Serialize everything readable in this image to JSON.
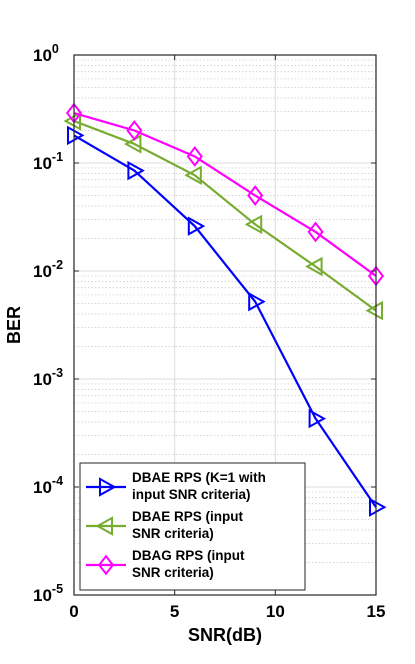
{
  "chart_data": {
    "type": "line",
    "title": "",
    "xlabel": "SNR(dB)",
    "ylabel": "BER",
    "x": [
      0,
      3,
      6,
      9,
      12,
      15
    ],
    "xlim": [
      0,
      15
    ],
    "xticks": [
      "0",
      "5",
      "10",
      "15"
    ],
    "yscale": "log",
    "ylim": [
      1e-05,
      1
    ],
    "yticks": [
      {
        "base": "10",
        "exp": "0"
      },
      {
        "base": "10",
        "exp": "-1"
      },
      {
        "base": "10",
        "exp": "-2"
      },
      {
        "base": "10",
        "exp": "-3"
      },
      {
        "base": "10",
        "exp": "-4"
      },
      {
        "base": "10",
        "exp": "-5"
      }
    ],
    "grid": true,
    "legend_position": "bottom-left",
    "series": [
      {
        "name_lines": [
          "DBAE RPS (K=1 with",
          "input SNR criteria)"
        ],
        "color": "#0000ff",
        "marker": "triangle-right",
        "values": [
          0.18,
          0.085,
          0.026,
          0.0052,
          0.00043,
          6.5e-05
        ]
      },
      {
        "name_lines": [
          "DBAE RPS (input",
          "SNR criteria)"
        ],
        "color": "#77ac30",
        "marker": "triangle-left",
        "values": [
          0.245,
          0.15,
          0.077,
          0.027,
          0.011,
          0.0043
        ]
      },
      {
        "name_lines": [
          "DBAG RPS (input",
          "SNR criteria)"
        ],
        "color": "#ff00ff",
        "marker": "diamond",
        "values": [
          0.29,
          0.2,
          0.115,
          0.05,
          0.023,
          0.009
        ]
      }
    ]
  }
}
